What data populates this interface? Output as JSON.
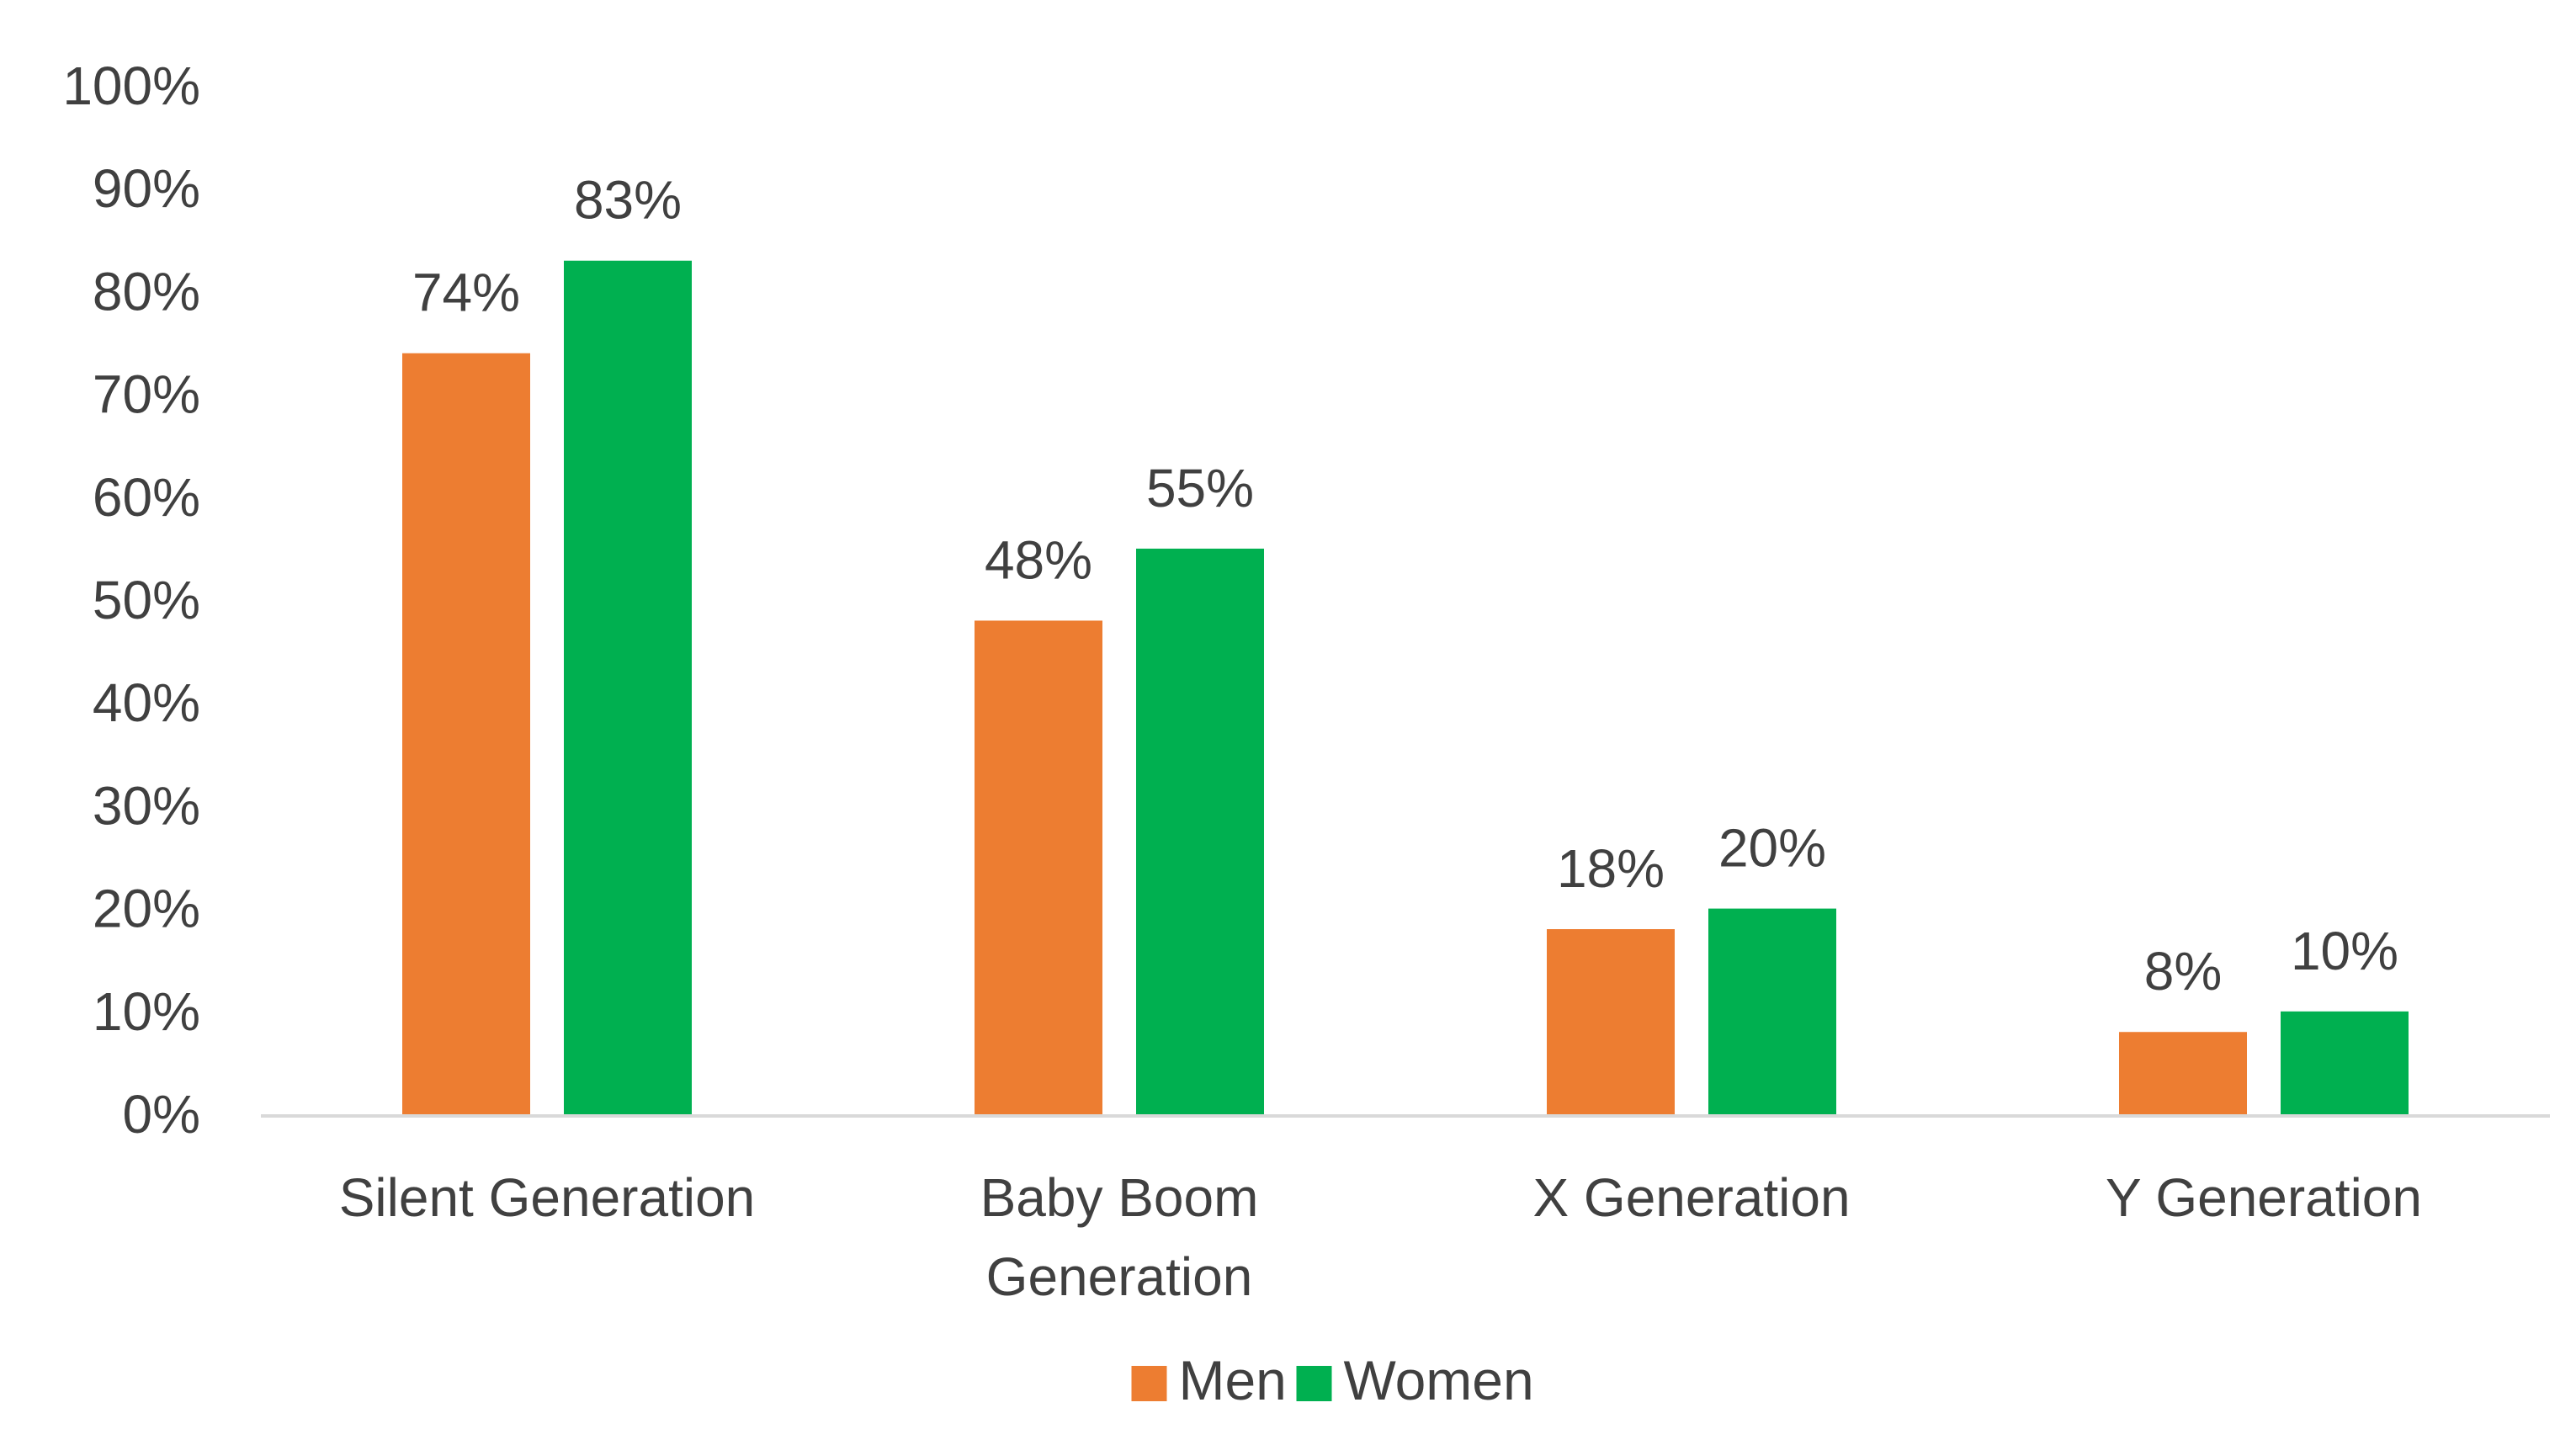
{
  "chart_data": {
    "type": "bar",
    "categories": [
      [
        "Silent Generation"
      ],
      [
        "Baby Boom",
        "Generation"
      ],
      [
        "X Generation"
      ],
      [
        "Y Generation"
      ]
    ],
    "series": [
      {
        "name": "Men",
        "color": "#ED7D31",
        "values": [
          74,
          48,
          18,
          8
        ],
        "labels": [
          "74%",
          "48%",
          "18%",
          "8%"
        ]
      },
      {
        "name": "Women",
        "color": "#00B050",
        "values": [
          83,
          55,
          20,
          10
        ],
        "labels": [
          "83%",
          "55%",
          "20%",
          "10%"
        ]
      }
    ],
    "ylim": [
      0,
      100
    ],
    "yticks": [
      "0%",
      "10%",
      "20%",
      "30%",
      "40%",
      "50%",
      "60%",
      "70%",
      "80%",
      "90%",
      "100%"
    ],
    "grid": false,
    "legend_position": "bottom",
    "axis_color": "#D9D9D9",
    "text_color": "#404040"
  }
}
